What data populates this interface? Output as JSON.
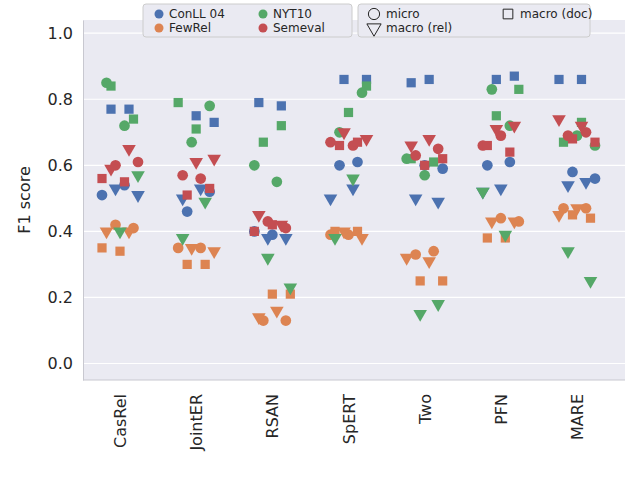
{
  "chart_data": {
    "type": "scatter",
    "y_label": "F1 score",
    "categories": [
      "CasRel",
      "JointER",
      "RSAN",
      "SpERT",
      "Two",
      "PFN",
      "MARE"
    ],
    "ylim": [
      -0.05,
      1.04
    ],
    "yticks": [
      {
        "value": 0,
        "label": "0.0"
      },
      0.2,
      0.4,
      0.6,
      0.8,
      {
        "value": 1,
        "label": "1.0"
      }
    ],
    "grid": true,
    "legend": "top",
    "markers": [
      {
        "name": "micro",
        "marker": "circle"
      },
      {
        "name": "macro (rel)",
        "marker": "triangle_down"
      },
      {
        "name": "macro (doc)",
        "marker": "square"
      }
    ],
    "series": [
      {
        "name": "ConLL 04",
        "color": "#4c72b0",
        "values": [
          [
            [
              0.51,
              0.54
            ],
            [
              0.46,
              0.52
            ],
            [
              0.39,
              0.4
            ],
            [
              0.61,
              0.6
            ],
            [
              0.59,
              0.6
            ],
            [
              0.6,
              0.61
            ],
            [
              0.58,
              0.56
            ]
          ],
          [
            [
              0.53,
              0.51
            ],
            [
              0.53,
              0.5
            ],
            [
              0.38,
              0.38
            ],
            [
              0.5,
              0.53
            ],
            [
              0.5,
              0.49
            ],
            [
              0.53,
              0.52
            ],
            [
              0.55,
              0.54
            ]
          ],
          [
            [
              0.77,
              0.77
            ],
            [
              0.73,
              0.75
            ],
            [
              0.79,
              0.78
            ],
            [
              0.86,
              0.86
            ],
            [
              0.86,
              0.85
            ],
            [
              0.87,
              0.86
            ],
            [
              0.86,
              0.86
            ]
          ]
        ]
      },
      {
        "name": "FewRel",
        "color": "#dd8452",
        "values": [
          [
            [
              0.41,
              0.42
            ],
            [
              0.35,
              0.35
            ],
            [
              0.13,
              0.13
            ],
            [
              0.39,
              0.39
            ],
            [
              0.34,
              0.33
            ],
            [
              0.43,
              0.44
            ],
            [
              0.47,
              0.47
            ]
          ],
          [
            [
              0.4,
              0.4
            ],
            [
              0.35,
              0.34
            ],
            [
              0.16,
              0.14
            ],
            [
              0.38,
              0.4
            ],
            [
              0.32,
              0.31
            ],
            [
              0.43,
              0.43
            ],
            [
              0.47,
              0.45
            ]
          ],
          [
            [
              0.34,
              0.35
            ],
            [
              0.3,
              0.3
            ],
            [
              0.21,
              0.21
            ],
            [
              0.4,
              0.4
            ],
            [
              0.25,
              0.25
            ],
            [
              0.38,
              0.38
            ],
            [
              0.44,
              0.45
            ]
          ]
        ]
      },
      {
        "name": "NYT10",
        "color": "#55a868",
        "values": [
          [
            [
              0.72,
              0.85
            ],
            [
              0.78,
              0.67
            ],
            [
              0.6,
              0.55
            ],
            [
              0.7,
              0.82
            ],
            [
              0.57,
              0.62
            ],
            [
              0.72,
              0.83
            ],
            [
              0.66,
              0.69
            ]
          ],
          [
            [
              0.57,
              0.4
            ],
            [
              0.38,
              0.49
            ],
            [
              0.32,
              0.23
            ],
            [
              0.56,
              0.38
            ],
            [
              0.18,
              0.15
            ],
            [
              0.52,
              0.39
            ],
            [
              0.34,
              0.25
            ]
          ],
          [
            [
              0.84,
              0.74
            ],
            [
              0.71,
              0.79
            ],
            [
              0.72,
              0.67
            ],
            [
              0.84,
              0.76
            ],
            [
              0.62,
              0.61
            ],
            [
              0.75,
              0.83
            ],
            [
              0.73,
              0.67
            ]
          ]
        ]
      },
      {
        "name": "Semeval",
        "color": "#c44e52",
        "values": [
          [
            [
              0.6,
              0.61
            ],
            [
              0.56,
              0.57
            ],
            [
              0.41,
              0.43
            ],
            [
              0.67,
              0.66
            ],
            [
              0.63,
              0.65
            ],
            [
              0.69,
              0.66
            ],
            [
              0.7,
              0.69
            ]
          ],
          [
            [
              0.65,
              0.59
            ],
            [
              0.62,
              0.61
            ],
            [
              0.45,
              0.42
            ],
            [
              0.7,
              0.68
            ],
            [
              0.68,
              0.66
            ],
            [
              0.72,
              0.71
            ],
            [
              0.74,
              0.72
            ]
          ],
          [
            [
              0.56,
              0.55
            ],
            [
              0.51,
              0.53
            ],
            [
              0.42,
              0.4
            ],
            [
              0.67,
              0.66
            ],
            [
              0.62,
              0.6
            ],
            [
              0.66,
              0.64
            ],
            [
              0.68,
              0.67
            ]
          ]
        ]
      }
    ]
  }
}
